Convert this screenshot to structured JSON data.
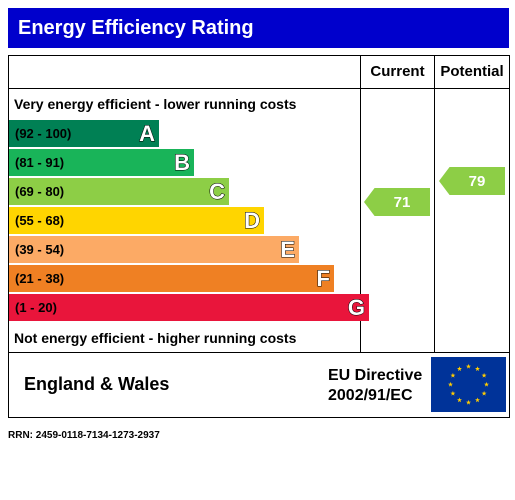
{
  "header": {
    "title": "Energy Efficiency Rating"
  },
  "columns": {
    "current_label": "Current",
    "potential_label": "Potential"
  },
  "captions": {
    "top": "Very energy efficient - lower running costs",
    "bottom": "Not energy efficient - higher running costs"
  },
  "chart_data": {
    "type": "bar",
    "title": "Energy Efficiency Rating",
    "categories": [
      "A",
      "B",
      "C",
      "D",
      "E",
      "F",
      "G"
    ],
    "ranges": [
      "(92 - 100)",
      "(81 - 91)",
      "(69 - 80)",
      "(55 - 68)",
      "(39 - 54)",
      "(21 - 38)",
      "(1 - 20)"
    ],
    "colors": [
      "#008054",
      "#19b459",
      "#8dce46",
      "#ffd500",
      "#fcaa65",
      "#ef8023",
      "#e9153b"
    ],
    "current": {
      "value": 71,
      "band": "C",
      "color": "#8dce46"
    },
    "potential": {
      "value": 79,
      "band": "C",
      "color": "#8dce46"
    }
  },
  "footer": {
    "region": "England & Wales",
    "directive_line1": "EU Directive",
    "directive_line2": "2002/91/EC"
  },
  "rrn": "RRN: 2459-0118-7134-1273-2937"
}
